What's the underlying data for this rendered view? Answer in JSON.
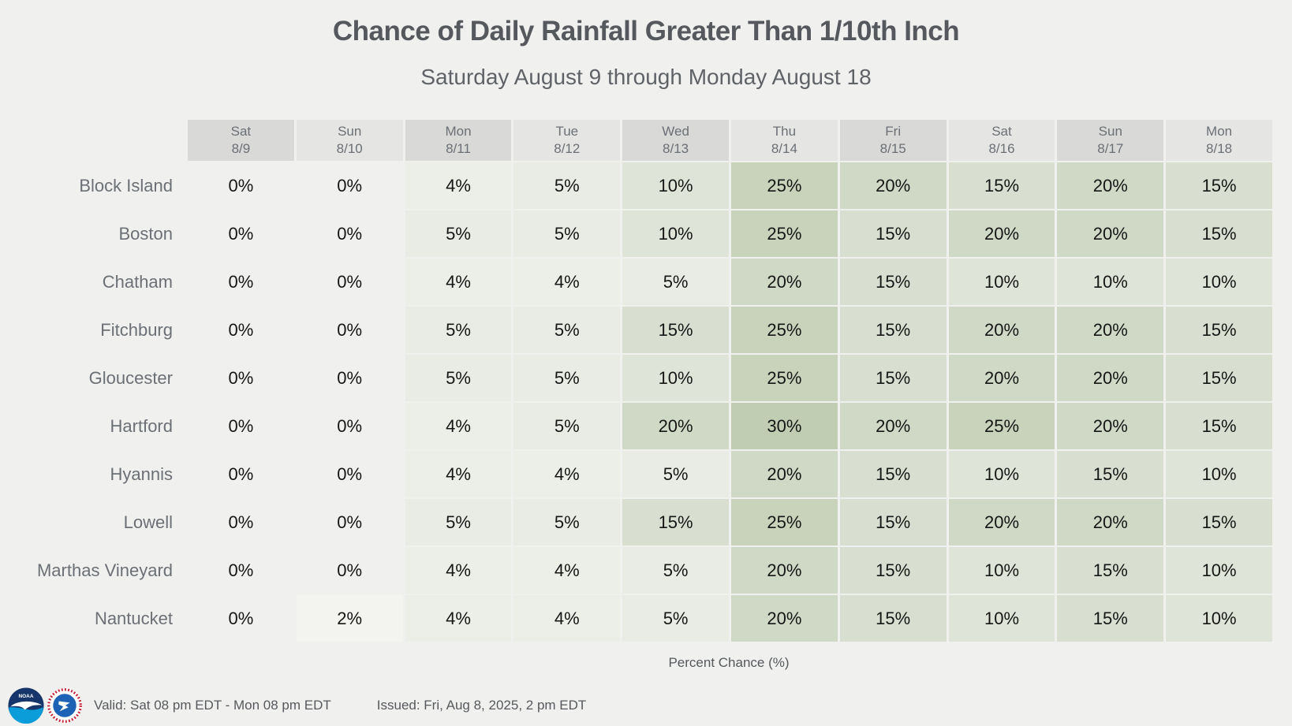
{
  "title": "Chance of Daily Rainfall Greater Than 1/10th Inch",
  "subtitle": "Saturday August 9 through Monday August 18",
  "table": {
    "columns": [
      {
        "day": "Sat",
        "date": "8/9"
      },
      {
        "day": "Sun",
        "date": "8/10"
      },
      {
        "day": "Mon",
        "date": "8/11"
      },
      {
        "day": "Tue",
        "date": "8/12"
      },
      {
        "day": "Wed",
        "date": "8/13"
      },
      {
        "day": "Thu",
        "date": "8/14"
      },
      {
        "day": "Fri",
        "date": "8/15"
      },
      {
        "day": "Sat",
        "date": "8/16"
      },
      {
        "day": "Sun",
        "date": "8/17"
      },
      {
        "day": "Mon",
        "date": "8/18"
      }
    ],
    "rows": [
      {
        "label": "Block Island",
        "values": [
          "0%",
          "0%",
          "4%",
          "5%",
          "10%",
          "25%",
          "20%",
          "15%",
          "20%",
          "15%"
        ]
      },
      {
        "label": "Boston",
        "values": [
          "0%",
          "0%",
          "5%",
          "5%",
          "10%",
          "25%",
          "15%",
          "20%",
          "20%",
          "15%"
        ]
      },
      {
        "label": "Chatham",
        "values": [
          "0%",
          "0%",
          "4%",
          "4%",
          "5%",
          "20%",
          "15%",
          "10%",
          "10%",
          "10%"
        ]
      },
      {
        "label": "Fitchburg",
        "values": [
          "0%",
          "0%",
          "5%",
          "5%",
          "15%",
          "25%",
          "15%",
          "20%",
          "20%",
          "15%"
        ]
      },
      {
        "label": "Gloucester",
        "values": [
          "0%",
          "0%",
          "5%",
          "5%",
          "10%",
          "25%",
          "15%",
          "20%",
          "20%",
          "15%"
        ]
      },
      {
        "label": "Hartford",
        "values": [
          "0%",
          "0%",
          "4%",
          "5%",
          "20%",
          "30%",
          "20%",
          "25%",
          "20%",
          "15%"
        ]
      },
      {
        "label": "Hyannis",
        "values": [
          "0%",
          "0%",
          "4%",
          "4%",
          "5%",
          "20%",
          "15%",
          "10%",
          "15%",
          "10%"
        ]
      },
      {
        "label": "Lowell",
        "values": [
          "0%",
          "0%",
          "5%",
          "5%",
          "15%",
          "25%",
          "15%",
          "20%",
          "20%",
          "15%"
        ]
      },
      {
        "label": "Marthas Vineyard",
        "values": [
          "0%",
          "0%",
          "4%",
          "4%",
          "5%",
          "20%",
          "15%",
          "10%",
          "15%",
          "10%"
        ]
      },
      {
        "label": "Nantucket",
        "values": [
          "0%",
          "2%",
          "4%",
          "4%",
          "5%",
          "20%",
          "15%",
          "10%",
          "15%",
          "10%"
        ]
      }
    ],
    "caption": "Percent Chance (%)"
  },
  "footer": {
    "valid": "Valid: Sat 08 pm EDT - Mon 08 pm EDT",
    "issued": "Issued: Fri, Aug 8, 2025, 2 pm EDT",
    "logos": [
      "noaa-logo",
      "nws-logo"
    ]
  },
  "colors": {
    "page_bg": "#f0f0ee",
    "header_dark": "#d9d9d7",
    "header_light": "#e5e5e3",
    "title_text": "#55585d",
    "muted_text": "#6b7076",
    "scale": {
      "0%": "transparent",
      "2%": "#f3f3f0",
      "4%": "#eceee8",
      "5%": "#e9ece5",
      "10%": "#dfe4d8",
      "15%": "#d8dfd0",
      "20%": "#d0d9c5",
      "25%": "#c9d3bb",
      "30%": "#c1cdb2"
    }
  },
  "chart_data": {
    "type": "heatmap",
    "title": "Chance of Daily Rainfall Greater Than 1/10th Inch",
    "subtitle": "Saturday August 9 through Monday August 18",
    "x_labels": [
      "Sat 8/9",
      "Sun 8/10",
      "Mon 8/11",
      "Tue 8/12",
      "Wed 8/13",
      "Thu 8/14",
      "Fri 8/15",
      "Sat 8/16",
      "Sun 8/17",
      "Mon 8/18"
    ],
    "y_labels": [
      "Block Island",
      "Boston",
      "Chatham",
      "Fitchburg",
      "Gloucester",
      "Hartford",
      "Hyannis",
      "Lowell",
      "Marthas Vineyard",
      "Nantucket"
    ],
    "values": [
      [
        0,
        0,
        4,
        5,
        10,
        25,
        20,
        15,
        20,
        15
      ],
      [
        0,
        0,
        5,
        5,
        10,
        25,
        15,
        20,
        20,
        15
      ],
      [
        0,
        0,
        4,
        4,
        5,
        20,
        15,
        10,
        10,
        10
      ],
      [
        0,
        0,
        5,
        5,
        15,
        25,
        15,
        20,
        20,
        15
      ],
      [
        0,
        0,
        5,
        5,
        10,
        25,
        15,
        20,
        20,
        15
      ],
      [
        0,
        0,
        4,
        5,
        20,
        30,
        20,
        25,
        20,
        15
      ],
      [
        0,
        0,
        4,
        4,
        5,
        20,
        15,
        10,
        15,
        10
      ],
      [
        0,
        0,
        5,
        5,
        15,
        25,
        15,
        20,
        20,
        15
      ],
      [
        0,
        0,
        4,
        4,
        5,
        20,
        15,
        10,
        15,
        10
      ],
      [
        0,
        2,
        4,
        4,
        5,
        20,
        15,
        10,
        15,
        10
      ]
    ],
    "unit": "Percent Chance (%)",
    "value_range": [
      0,
      30
    ],
    "legend_position": "none",
    "grid": false
  }
}
